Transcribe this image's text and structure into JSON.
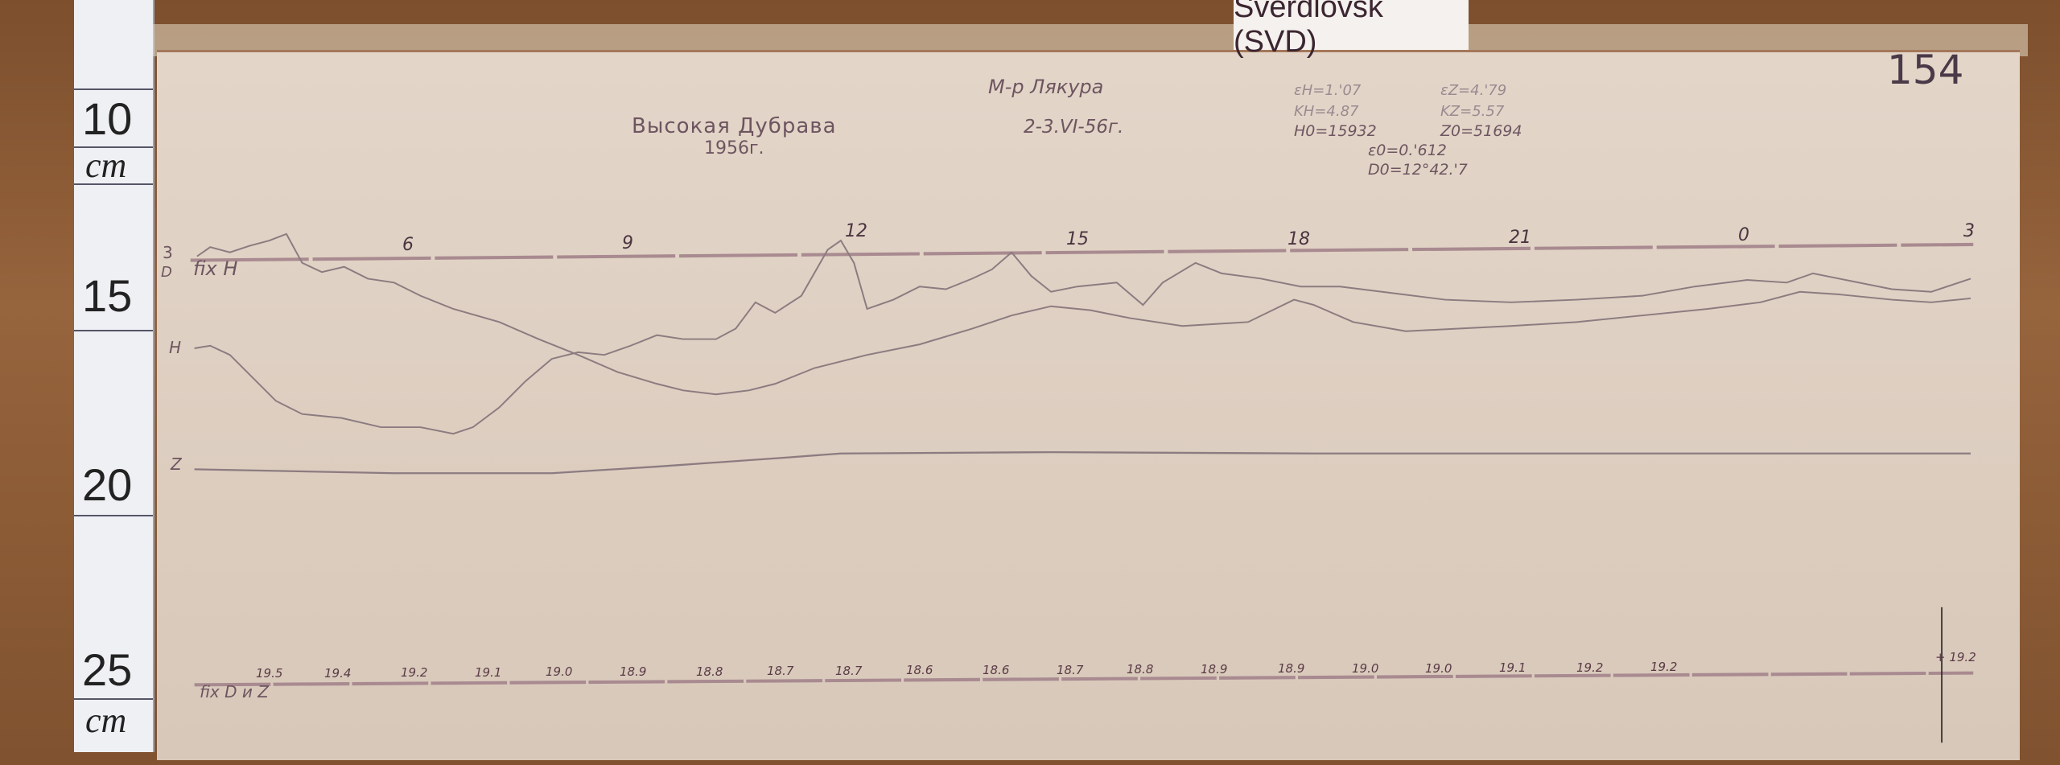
{
  "ruler": {
    "labels": [
      "10",
      "cm",
      "15",
      "20",
      "25",
      "cm"
    ]
  },
  "station_label": "Sverdlovsk (SVD)",
  "sheet_number": "154",
  "title": "Высокая Дубрава",
  "year": "1956г.",
  "observer": "М-р Лякура",
  "date": "2-3.VI-56г.",
  "parameters": {
    "eH": "εH=1.'07",
    "eZ": "εZ=4.'79",
    "KH": "KH=4.87",
    "KZ": "KZ=5.57",
    "H0": "H0=15932",
    "Z0": "Z0=51694",
    "e0": "ε0=0.'612",
    "D0": "D0=12°42.'7"
  },
  "trace_labels": {
    "d": "D",
    "h": "H",
    "z": "Z",
    "fix_h": "fix H",
    "fix_dz": "fix D и Z",
    "start_hour": "3"
  },
  "hour_marks": [
    "6",
    "9",
    "12",
    "15",
    "18",
    "21",
    "0",
    "3"
  ],
  "base_ticks": [
    "19.5",
    "19.4",
    "19.2",
    "19.1",
    "19.0",
    "18.9",
    "18.8",
    "18.7",
    "18.7",
    "18.6",
    "18.6",
    "18.7",
    "18.8",
    "18.9",
    "18.9",
    "19.0",
    "19.0",
    "19.1",
    "19.2",
    "19.2"
  ],
  "scale_mark": "+ 19.2",
  "colors": {
    "trace": "#8c7b80",
    "baseline": "#a88a90",
    "paper": "#ddd0c3",
    "ink": "#6d5560"
  }
}
